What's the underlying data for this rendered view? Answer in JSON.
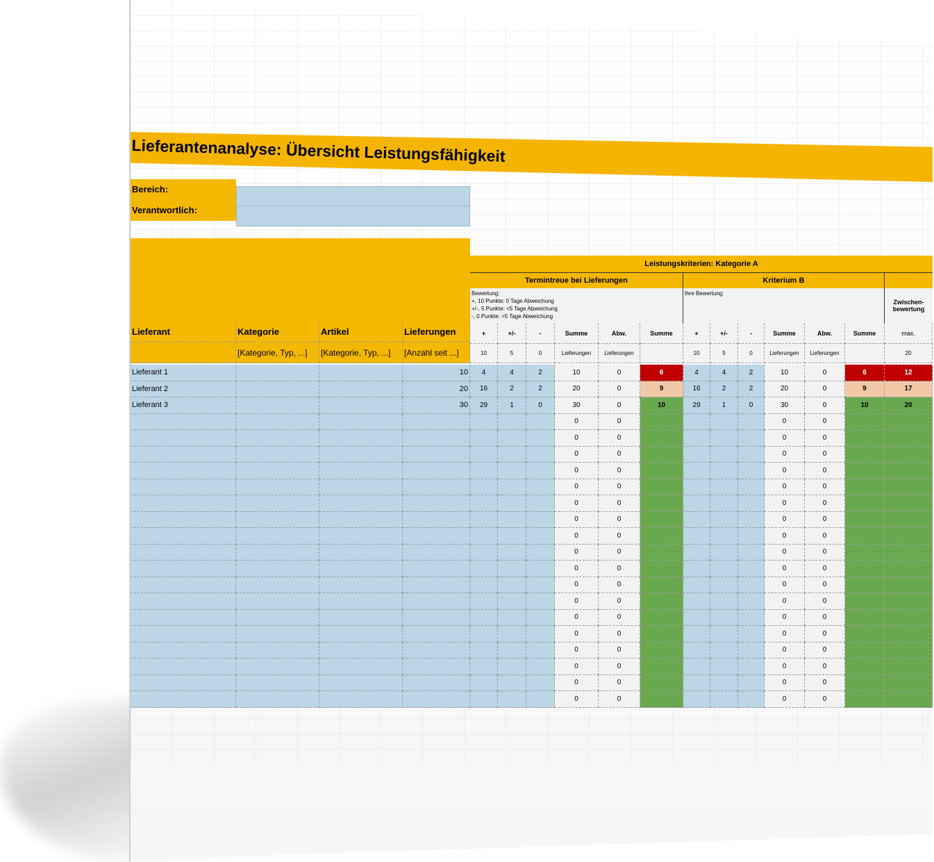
{
  "title": "Lieferantenanalyse: Übersicht Leistungsfähigkeit",
  "meta": {
    "bereich_label": "Bereich:",
    "verantwortlich_label": "Verantwortlich:",
    "bereich_value": "",
    "verantwortlich_value": ""
  },
  "headers": {
    "lieferant": "Lieferant",
    "kategorie": "Kategorie",
    "artikel": "Artikel",
    "lieferungen": "Lieferungen",
    "kategorie_ph": "[Kategorie, Typ, ...]",
    "artikel_ph": "[Kategorie, Typ, ...]",
    "lieferungen_ph": "[Anzahl seit ...]",
    "group_a": "Leistungskriterien: Kategorie A",
    "termintreue": "Termintreue bei Lieferungen",
    "kriterium_b": "Kriterium B",
    "bewertung_lines": [
      "Bewertung:",
      "+, 10 Punkte: 0 Tage Abweichung",
      "+/-, 5 Punkte: <5 Tage Abweichung",
      "-, 0 Punkte: >5 Tage Abweichung"
    ],
    "ihre_bewertung": "Ihre Bewertung:",
    "zwischen": "Zwischen-\nbewertung",
    "sub": [
      "+",
      "+/-",
      "-",
      "Summe",
      "Abw.",
      "Summe"
    ],
    "sub_vals": [
      "10",
      "5",
      "0",
      "Lieferungen",
      "Lieferungen",
      ""
    ],
    "max_label": "max.",
    "max_value": "20"
  },
  "rows": [
    {
      "name": "Lieferant 1",
      "lieferungen": "10",
      "a": [
        "4",
        "4",
        "2",
        "10",
        "0",
        "6"
      ],
      "b": [
        "4",
        "4",
        "2",
        "10",
        "0",
        "6"
      ],
      "total": "12",
      "color": "r"
    },
    {
      "name": "Lieferant 2",
      "lieferungen": "20",
      "a": [
        "16",
        "2",
        "2",
        "20",
        "0",
        "9"
      ],
      "b": [
        "16",
        "2",
        "2",
        "20",
        "0",
        "9"
      ],
      "total": "17",
      "color": "p"
    },
    {
      "name": "Lieferant 3",
      "lieferungen": "30",
      "a": [
        "29",
        "1",
        "0",
        "30",
        "0",
        "10"
      ],
      "b": [
        "29",
        "1",
        "0",
        "30",
        "0",
        "10"
      ],
      "total": "20",
      "color": "g"
    }
  ],
  "empty_rows_value": "0",
  "empty_row_count": 18
}
